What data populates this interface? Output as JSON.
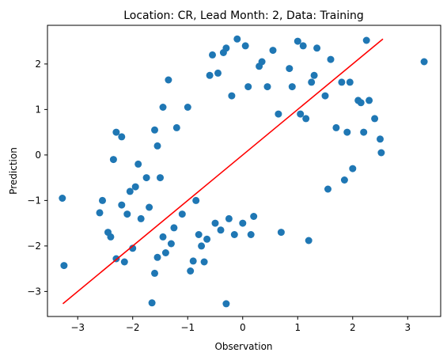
{
  "chart_data": {
    "type": "scatter",
    "title": "Location: CR, Lead Month: 2, Data: Training",
    "xlabel": "Observation",
    "ylabel": "Prediction",
    "xlim": [
      -3.55,
      3.6
    ],
    "ylim": [
      -3.55,
      2.85
    ],
    "xticks": [
      -3,
      -2,
      -1,
      0,
      1,
      2,
      3
    ],
    "yticks": [
      -3,
      -2,
      -1,
      0,
      1,
      2
    ],
    "grid": false,
    "marker_color": "#1f77b4",
    "fit_line_color": "#ff0000",
    "fit_line": {
      "x": [
        -3.27,
        2.55
      ],
      "y": [
        -3.27,
        2.55
      ]
    },
    "series": [
      {
        "x": [
          -3.28,
          -3.25,
          -2.6,
          -2.55,
          -2.45,
          -2.4,
          -2.35,
          -2.3,
          -2.3,
          -2.2,
          -2.2,
          -2.15,
          -2.1,
          -2.05,
          -2.0,
          -1.95,
          -1.9,
          -1.85,
          -1.75,
          -1.7,
          -1.65,
          -1.6,
          -1.6,
          -1.55,
          -1.55,
          -1.5,
          -1.45,
          -1.45,
          -1.4,
          -1.35,
          -1.3,
          -1.25,
          -1.2,
          -1.1,
          -1.0,
          -0.95,
          -0.9,
          -0.85,
          -0.8,
          -0.75,
          -0.7,
          -0.65,
          -0.6,
          -0.55,
          -0.5,
          -0.45,
          -0.4,
          -0.35,
          -0.3,
          -0.3,
          -0.25,
          -0.2,
          -0.15,
          -0.1,
          0.0,
          0.05,
          0.1,
          0.15,
          0.2,
          0.3,
          0.35,
          0.45,
          0.55,
          0.65,
          0.7,
          0.85,
          0.9,
          1.0,
          1.05,
          1.1,
          1.15,
          1.2,
          1.25,
          1.3,
          1.35,
          1.5,
          1.55,
          1.6,
          1.7,
          1.8,
          1.85,
          1.9,
          1.95,
          2.0,
          2.1,
          2.15,
          2.2,
          2.25,
          2.3,
          2.4,
          2.5,
          2.52,
          3.3
        ],
        "y": [
          -0.95,
          -2.43,
          -1.27,
          -1.0,
          -1.7,
          -1.8,
          -0.1,
          -2.28,
          0.5,
          0.4,
          -1.1,
          -2.35,
          -1.3,
          -0.8,
          -2.05,
          -0.7,
          -0.2,
          -1.4,
          -0.5,
          -1.15,
          -3.25,
          0.55,
          -2.6,
          0.2,
          -2.25,
          -0.5,
          -1.8,
          1.05,
          -2.15,
          1.65,
          -1.95,
          -1.6,
          0.6,
          -1.3,
          1.05,
          -2.55,
          -2.33,
          -1.0,
          -1.75,
          -2.0,
          -2.35,
          -1.85,
          1.75,
          2.2,
          -1.5,
          1.8,
          -1.65,
          2.25,
          -3.27,
          2.35,
          -1.4,
          1.3,
          -1.75,
          2.55,
          -1.5,
          2.4,
          1.5,
          -1.75,
          -1.35,
          1.95,
          2.05,
          1.5,
          2.3,
          0.9,
          -1.7,
          1.9,
          1.5,
          2.5,
          0.9,
          2.4,
          0.8,
          -1.88,
          1.6,
          1.75,
          2.35,
          1.3,
          -0.75,
          2.1,
          0.6,
          1.6,
          -0.55,
          0.5,
          1.6,
          -0.3,
          1.2,
          1.15,
          0.5,
          2.52,
          1.2,
          0.8,
          0.35,
          0.05,
          2.05
        ]
      }
    ]
  }
}
